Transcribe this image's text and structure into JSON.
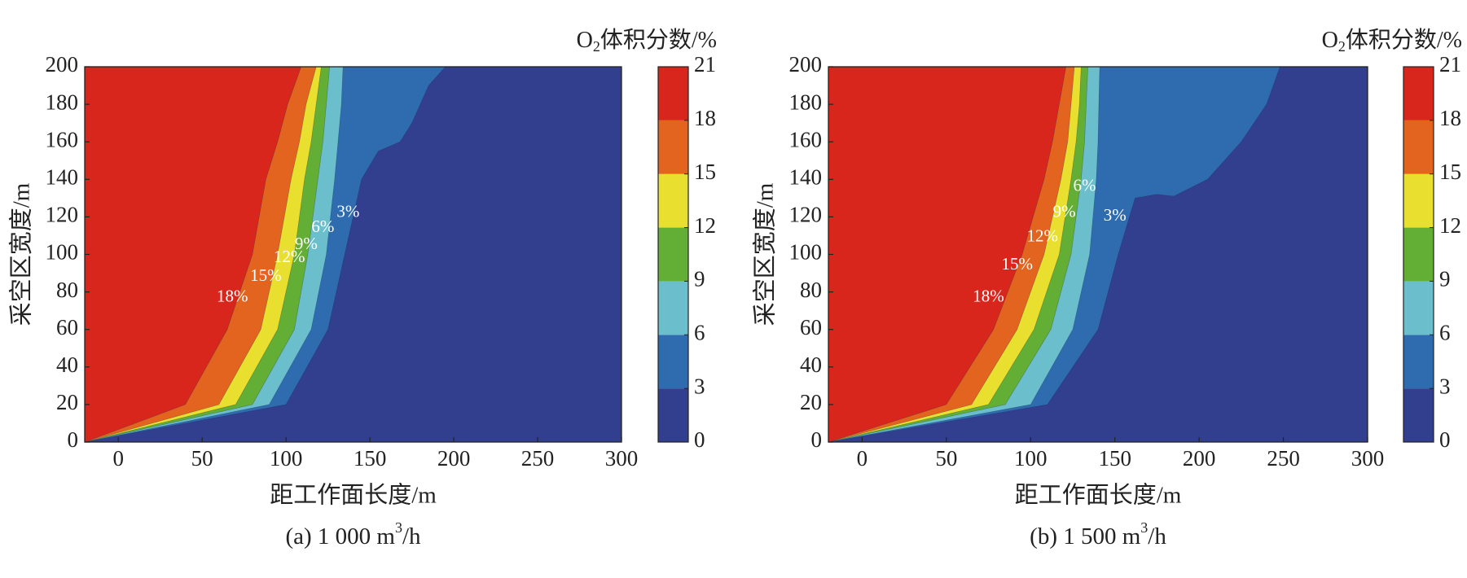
{
  "chart_data": [
    {
      "type": "heatmap",
      "subtype": "filled-contour",
      "caption": "(a) 1 000 m³/h",
      "caption_parts": [
        "(a) 1 000 m",
        "3",
        "/h"
      ],
      "xlabel": "距工作面长度/m",
      "ylabel": "采空区宽度/m",
      "xlim": [
        -20,
        300
      ],
      "ylim": [
        0,
        200
      ],
      "xticks": [
        0,
        50,
        100,
        150,
        200,
        250,
        300
      ],
      "yticks": [
        0,
        20,
        40,
        60,
        80,
        100,
        120,
        140,
        160,
        180,
        200
      ],
      "colorbar": {
        "title_parts": [
          "O",
          "2",
          "体积分数/%"
        ],
        "levels": [
          0,
          3,
          6,
          9,
          12,
          15,
          18,
          21
        ]
      },
      "contours": [
        {
          "level": 18,
          "label": "18%",
          "x": [
            -20,
            40,
            65,
            80,
            88,
            95,
            101,
            109
          ],
          "y": [
            0,
            20,
            60,
            100,
            140,
            160,
            180,
            200
          ],
          "label_at": [
            68,
            77
          ]
        },
        {
          "level": 15,
          "label": "15%",
          "x": [
            -20,
            60,
            85,
            95,
            103,
            108,
            112,
            118
          ],
          "y": [
            0,
            20,
            60,
            100,
            140,
            160,
            180,
            200
          ],
          "label_at": [
            88,
            88
          ]
        },
        {
          "level": 12,
          "label": "12%",
          "x": [
            -20,
            70,
            95,
            105,
            111,
            115,
            118,
            121
          ],
          "y": [
            0,
            20,
            60,
            100,
            140,
            160,
            180,
            200
          ],
          "label_at": [
            102,
            98
          ]
        },
        {
          "level": 9,
          "label": "9%",
          "x": [
            -20,
            80,
            105,
            113,
            119,
            122,
            124,
            126
          ],
          "y": [
            0,
            20,
            60,
            100,
            140,
            160,
            180,
            200
          ],
          "label_at": [
            112,
            105
          ]
        },
        {
          "level": 6,
          "label": "6%",
          "x": [
            -20,
            90,
            115,
            124,
            129,
            131,
            133,
            134
          ],
          "y": [
            0,
            20,
            60,
            100,
            140,
            160,
            180,
            200
          ],
          "label_at": [
            122,
            114
          ]
        },
        {
          "level": 3,
          "label": "3%",
          "x": [
            -20,
            100,
            125,
            135,
            145,
            155,
            168,
            175,
            185,
            195
          ],
          "y": [
            0,
            20,
            60,
            100,
            140,
            155,
            160,
            170,
            190,
            200
          ],
          "label_at": [
            137,
            122
          ]
        }
      ]
    },
    {
      "type": "heatmap",
      "subtype": "filled-contour",
      "caption": "(b) 1 500 m³/h",
      "caption_parts": [
        "(b) 1 500 m",
        "3",
        "/h"
      ],
      "xlabel": "距工作面长度/m",
      "ylabel": "采空区宽度/m",
      "xlim": [
        -20,
        300
      ],
      "ylim": [
        0,
        200
      ],
      "xticks": [
        0,
        50,
        100,
        150,
        200,
        250,
        300
      ],
      "yticks": [
        0,
        20,
        40,
        60,
        80,
        100,
        120,
        140,
        160,
        180,
        200
      ],
      "colorbar": {
        "title_parts": [
          "O",
          "2",
          "体积分数/%"
        ],
        "levels": [
          0,
          3,
          6,
          9,
          12,
          15,
          18,
          21
        ]
      },
      "contours": [
        {
          "level": 18,
          "label": "18%",
          "x": [
            -20,
            50,
            78,
            95,
            108,
            113,
            117,
            121
          ],
          "y": [
            0,
            20,
            60,
            100,
            140,
            160,
            180,
            200
          ],
          "label_at": [
            75,
            77
          ]
        },
        {
          "level": 15,
          "label": "15%",
          "x": [
            -20,
            65,
            92,
            108,
            118,
            122,
            124,
            126
          ],
          "y": [
            0,
            20,
            60,
            100,
            140,
            160,
            180,
            200
          ],
          "label_at": [
            92,
            94
          ]
        },
        {
          "level": 12,
          "label": "12%",
          "x": [
            -20,
            75,
            102,
            117,
            124,
            127,
            129,
            130
          ],
          "y": [
            0,
            20,
            60,
            100,
            140,
            160,
            180,
            200
          ],
          "label_at": [
            107,
            109
          ]
        },
        {
          "level": 9,
          "label": "9%",
          "x": [
            -20,
            85,
            112,
            124,
            130,
            132,
            133,
            134
          ],
          "y": [
            0,
            20,
            60,
            100,
            140,
            160,
            180,
            200
          ],
          "label_at": [
            120,
            122
          ]
        },
        {
          "level": 6,
          "label": "6%",
          "x": [
            -20,
            100,
            125,
            135,
            139,
            140,
            140.5,
            141
          ],
          "y": [
            0,
            20,
            60,
            100,
            140,
            160,
            180,
            200
          ],
          "label_at": [
            132,
            136
          ]
        },
        {
          "level": 3,
          "label": "3%",
          "x": [
            -20,
            110,
            140,
            152,
            162,
            175,
            185,
            205,
            225,
            240,
            248
          ],
          "y": [
            0,
            20,
            60,
            100,
            130,
            132,
            131,
            140,
            160,
            180,
            200
          ],
          "label_at": [
            150,
            120
          ]
        }
      ]
    }
  ],
  "colors": {
    "band_0_3": "#313f8e",
    "band_3_6": "#2e6caf",
    "band_6_9": "#6bbfcc",
    "band_9_12": "#63ae34",
    "band_12_15": "#e8df2e",
    "band_15_18": "#e2641f",
    "band_18_21": "#d9261c"
  }
}
